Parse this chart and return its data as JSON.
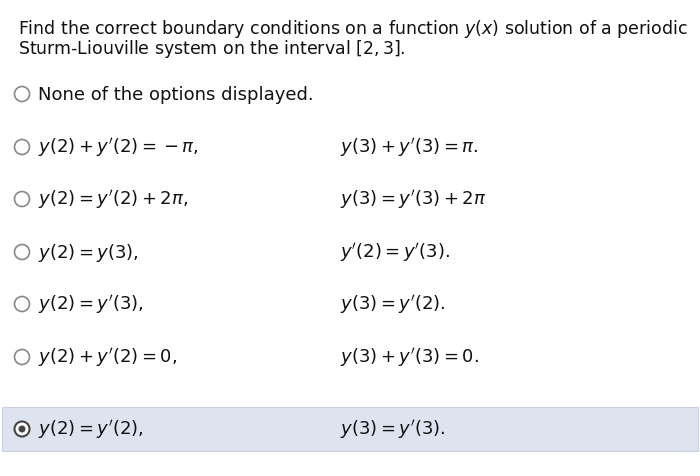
{
  "title_line1": "Find the correct boundary conditions on a function $y(x)$ solution of a periodic",
  "title_line2": "Sturm-Liouville system on the interval $[2, 3]$.",
  "bg_color": "#ffffff",
  "highlight_color": "#dde4ef",
  "options": [
    {
      "label": "None of the options displayed.",
      "left": "",
      "right": "",
      "selected": false,
      "highlight": false
    },
    {
      "label": "",
      "left": "$y(2) + y'(2) = -\\pi,$",
      "right": "$y(3) + y'(3) = \\pi.$",
      "selected": false,
      "highlight": false
    },
    {
      "label": "",
      "left": "$y(2) = y'(2) + 2\\pi,$",
      "right": "$y(3) = y'(3) + 2\\pi$",
      "selected": false,
      "highlight": false
    },
    {
      "label": "",
      "left": "$y(2) = y(3),$",
      "right": "$y'(2) = y'(3).$",
      "selected": false,
      "highlight": false
    },
    {
      "label": "",
      "left": "$y(2) = y'(3),$",
      "right": "$y(3) = y'(2).$",
      "selected": false,
      "highlight": false
    },
    {
      "label": "",
      "left": "$y(2) + y'(2) = 0,$",
      "right": "$y(3) + y'(3) = 0.$",
      "selected": false,
      "highlight": false
    },
    {
      "label": "",
      "left": "$y(2) = y'(2),$",
      "right": "$y(3) = y'(3).$",
      "selected": true,
      "highlight": true
    }
  ],
  "font_size_title": 12.5,
  "font_size_option": 13.0,
  "text_color": "#111111"
}
